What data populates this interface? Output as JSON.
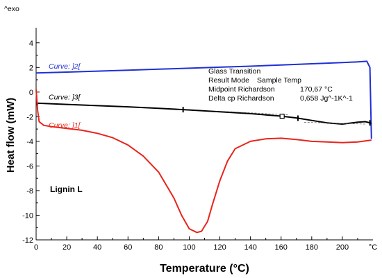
{
  "chart_data": {
    "type": "line",
    "ylabel_top": "^exo",
    "xlabel": "Temperature (°C)",
    "ylabel": "Heat flow (mW)",
    "x_unit_label": "°C",
    "xlim": [
      0,
      220
    ],
    "ylim": [
      -12,
      5
    ],
    "xticks": [
      0,
      20,
      40,
      60,
      80,
      100,
      120,
      140,
      160,
      180,
      200
    ],
    "yticks": [
      -12,
      -10,
      -8,
      -6,
      -4,
      -2,
      0,
      2,
      4
    ],
    "grid": false,
    "sample_label": "Lignin L",
    "series": [
      {
        "name": "Curve: ]2[",
        "color": "#1f2fd6",
        "x": [
          0,
          20,
          40,
          60,
          80,
          100,
          120,
          140,
          160,
          180,
          200,
          210,
          216,
          218,
          219
        ],
        "y": [
          1.55,
          1.62,
          1.7,
          1.78,
          1.86,
          1.94,
          2.02,
          2.1,
          2.2,
          2.3,
          2.4,
          2.45,
          2.5,
          2.0,
          -3.8
        ]
      },
      {
        "name": "Curve: ]3[",
        "color": "#000000",
        "x": [
          0,
          20,
          40,
          60,
          80,
          100,
          120,
          140,
          160,
          170,
          180,
          190,
          200,
          210,
          215,
          218,
          219
        ],
        "y": [
          -0.9,
          -1.0,
          -1.1,
          -1.2,
          -1.32,
          -1.45,
          -1.6,
          -1.75,
          -1.95,
          -2.1,
          -2.3,
          -2.5,
          -2.6,
          -2.45,
          -2.4,
          -2.5,
          -2.55
        ]
      },
      {
        "name": "Curve: ]1[",
        "color": "#e8241b",
        "x": [
          0,
          1,
          2,
          5,
          10,
          20,
          30,
          40,
          50,
          60,
          70,
          80,
          90,
          95,
          100,
          105,
          108,
          112,
          115,
          120,
          125,
          130,
          140,
          150,
          160,
          170,
          180,
          190,
          200,
          210,
          219
        ],
        "y": [
          0.2,
          -1.5,
          -2.4,
          -2.7,
          -2.8,
          -2.95,
          -3.1,
          -3.35,
          -3.7,
          -4.3,
          -5.2,
          -6.5,
          -8.6,
          -10.0,
          -11.1,
          -11.4,
          -11.3,
          -10.5,
          -9.2,
          -7.2,
          -5.6,
          -4.6,
          -4.0,
          -3.8,
          -3.75,
          -3.85,
          -4.0,
          -4.05,
          -4.1,
          -4.05,
          -3.9
        ]
      }
    ],
    "annotation": {
      "title": "Glass Transition",
      "lines": [
        [
          "Result Mode",
          "Sample Temp"
        ],
        [
          "Midpoint Richardson",
          "170,67 °C"
        ],
        [
          "Delta cp Richardson",
          "0,658 Jg^-1K^-1"
        ]
      ],
      "midpoint": 170.67
    }
  }
}
